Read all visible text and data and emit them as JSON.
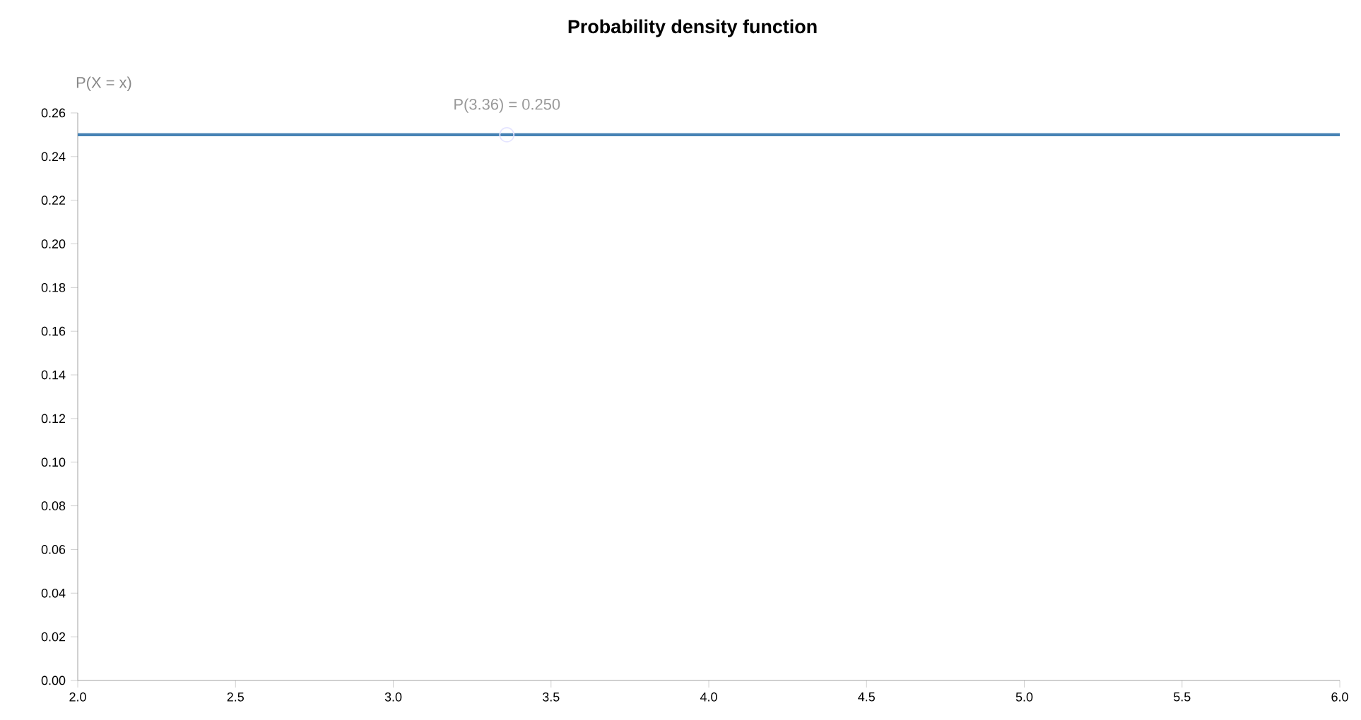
{
  "chart_data": {
    "type": "line",
    "title": "Probability density function",
    "ylabel": "P(X = x)",
    "x": [
      2,
      6
    ],
    "series": [
      {
        "color": "#4682b4",
        "values": [
          0.25,
          0.25
        ]
      }
    ],
    "xlim": [
      2,
      6
    ],
    "ylim": [
      0,
      0.26
    ],
    "xticks": [
      {
        "value": 2,
        "label": "2.0"
      },
      {
        "value": 2.5,
        "label": "2.5"
      },
      {
        "value": 3,
        "label": "3.0"
      },
      {
        "value": 3.5,
        "label": "3.5"
      },
      {
        "value": 4,
        "label": "4.0"
      },
      {
        "value": 4.5,
        "label": "4.5"
      },
      {
        "value": 5,
        "label": "5.0"
      },
      {
        "value": 5.5,
        "label": "5.5"
      },
      {
        "value": 6,
        "label": "6.0"
      }
    ],
    "yticks": [
      {
        "value": 0,
        "label": "0.00"
      },
      {
        "value": 0.02,
        "label": "0.02"
      },
      {
        "value": 0.04,
        "label": "0.04"
      },
      {
        "value": 0.06,
        "label": "0.06"
      },
      {
        "value": 0.08,
        "label": "0.08"
      },
      {
        "value": 0.1,
        "label": "0.10"
      },
      {
        "value": 0.12,
        "label": "0.12"
      },
      {
        "value": 0.14,
        "label": "0.14"
      },
      {
        "value": 0.16,
        "label": "0.16"
      },
      {
        "value": 0.18,
        "label": "0.18"
      },
      {
        "value": 0.2,
        "label": "0.20"
      },
      {
        "value": 0.22,
        "label": "0.22"
      },
      {
        "value": 0.24,
        "label": "0.24"
      },
      {
        "value": 0.26,
        "label": "0.26"
      }
    ],
    "annotations": [
      {
        "text": "P(3.36) = 0.250",
        "x": 3.36,
        "y": 0.25
      }
    ],
    "grid": false,
    "legend": false,
    "marker": "none",
    "line_style": "solid"
  }
}
